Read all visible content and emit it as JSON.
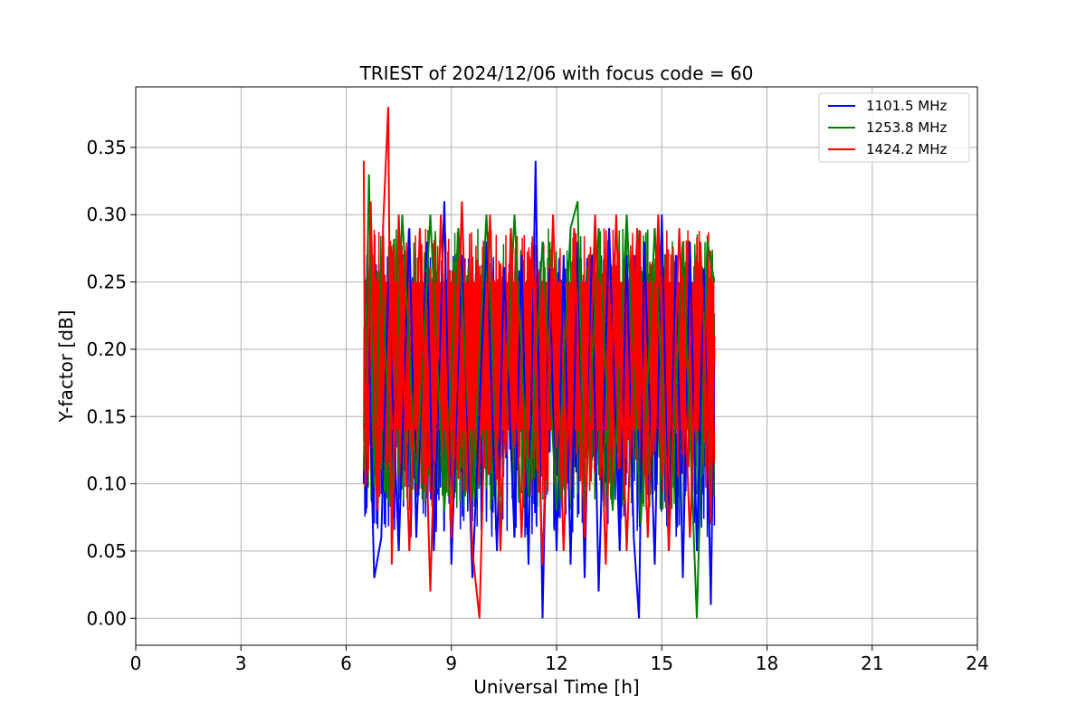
{
  "chart_data": {
    "type": "line",
    "title": "TRIEST of 2024/12/06 with focus code = 60",
    "xlabel": "Universal Time [h]",
    "ylabel": "Y-factor [dB]",
    "xlim": [
      0,
      24
    ],
    "ylim": [
      -0.02,
      0.395
    ],
    "xticks": [
      0,
      3,
      6,
      9,
      12,
      15,
      18,
      21,
      24
    ],
    "xtick_labels": [
      "0",
      "3",
      "6",
      "9",
      "12",
      "15",
      "18",
      "21",
      "24"
    ],
    "yticks": [
      0.0,
      0.05,
      0.1,
      0.15,
      0.2,
      0.25,
      0.3,
      0.35
    ],
    "ytick_labels": [
      "0.00",
      "0.05",
      "0.10",
      "0.15",
      "0.20",
      "0.25",
      "0.30",
      "0.35"
    ],
    "grid": true,
    "legend_position": "top-right",
    "series": [
      {
        "name": "1101.5 MHz",
        "color": "#0000ff",
        "x": [
          6.5,
          6.6,
          6.75,
          6.8,
          7.0,
          7.2,
          7.5,
          7.8,
          8.0,
          8.3,
          8.5,
          8.8,
          9.0,
          9.3,
          9.6,
          10.0,
          10.3,
          10.5,
          10.8,
          11.0,
          11.2,
          11.4,
          11.6,
          11.8,
          12.0,
          12.2,
          12.4,
          12.6,
          12.8,
          13.0,
          13.2,
          13.5,
          13.8,
          14.0,
          14.2,
          14.35,
          14.5,
          14.8,
          15.0,
          15.2,
          15.4,
          15.6,
          15.8,
          16.0,
          16.2,
          16.4,
          16.5
        ],
        "y": [
          0.1,
          0.27,
          0.08,
          0.03,
          0.06,
          0.25,
          0.05,
          0.29,
          0.06,
          0.28,
          0.05,
          0.31,
          0.04,
          0.27,
          0.03,
          0.28,
          0.05,
          0.26,
          0.06,
          0.27,
          0.04,
          0.34,
          0.0,
          0.26,
          0.05,
          0.27,
          0.04,
          0.28,
          0.03,
          0.27,
          0.02,
          0.29,
          0.05,
          0.27,
          0.06,
          0.0,
          0.28,
          0.04,
          0.3,
          0.05,
          0.27,
          0.03,
          0.28,
          0.05,
          0.26,
          0.01,
          0.2
        ]
      },
      {
        "name": "1253.8 MHz",
        "color": "#008000",
        "x": [
          6.5,
          6.65,
          6.8,
          7.0,
          7.3,
          7.6,
          8.0,
          8.4,
          8.8,
          9.2,
          9.6,
          10.0,
          10.4,
          10.8,
          11.2,
          11.6,
          12.0,
          12.4,
          12.6,
          12.8,
          13.2,
          13.6,
          14.0,
          14.4,
          14.8,
          15.2,
          15.6,
          16.0,
          16.3,
          16.5
        ],
        "y": [
          0.11,
          0.33,
          0.1,
          0.27,
          0.09,
          0.3,
          0.1,
          0.3,
          0.08,
          0.29,
          0.09,
          0.3,
          0.07,
          0.3,
          0.09,
          0.28,
          0.08,
          0.29,
          0.31,
          0.07,
          0.29,
          0.08,
          0.3,
          0.07,
          0.29,
          0.06,
          0.28,
          0.0,
          0.28,
          0.25
        ]
      },
      {
        "name": "1424.2 MHz",
        "color": "#ff0000",
        "x": [
          6.5,
          6.55,
          6.7,
          6.9,
          7.05,
          7.2,
          7.3,
          7.5,
          7.8,
          8.1,
          8.4,
          8.7,
          9.0,
          9.3,
          9.6,
          9.8,
          10.1,
          10.4,
          10.7,
          11.0,
          11.3,
          11.6,
          11.9,
          12.2,
          12.5,
          12.8,
          13.1,
          13.4,
          13.7,
          14.0,
          14.3,
          14.6,
          14.9,
          15.2,
          15.5,
          15.8,
          16.1,
          16.4,
          16.5
        ],
        "y": [
          0.34,
          0.1,
          0.31,
          0.08,
          0.29,
          0.38,
          0.04,
          0.3,
          0.05,
          0.29,
          0.02,
          0.3,
          0.06,
          0.31,
          0.05,
          0.0,
          0.3,
          0.05,
          0.29,
          0.06,
          0.28,
          0.04,
          0.3,
          0.05,
          0.29,
          0.06,
          0.3,
          0.04,
          0.3,
          0.05,
          0.29,
          0.06,
          0.3,
          0.05,
          0.29,
          0.06,
          0.28,
          0.07,
          0.21
        ]
      }
    ]
  }
}
